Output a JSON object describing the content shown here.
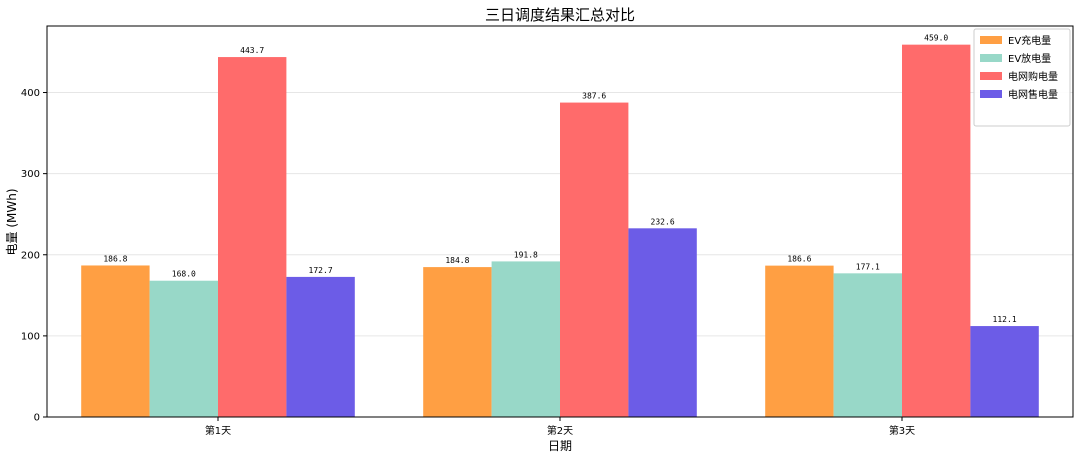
{
  "chart_data": {
    "type": "bar",
    "title": "三日调度结果汇总对比",
    "xlabel": "日期",
    "ylabel": "电量 (MWh)",
    "categories": [
      "第1天",
      "第2天",
      "第3天"
    ],
    "ylim": [
      0,
      482
    ],
    "yticks": [
      0,
      100,
      200,
      300,
      400
    ],
    "grid": "horizontal",
    "legend_position": "top-right",
    "series": [
      {
        "name": "EV充电量",
        "color": "#ff9f43",
        "values": [
          186.8,
          184.8,
          186.6
        ],
        "labels": [
          "186.8",
          "184.8",
          "186.6"
        ]
      },
      {
        "name": "EV放电量",
        "color": "#98d8c8",
        "values": [
          168.0,
          191.8,
          177.1
        ],
        "labels": [
          "168.0",
          "191.8",
          "177.1"
        ]
      },
      {
        "name": "电网购电量",
        "color": "#ff6b6b",
        "values": [
          443.7,
          387.6,
          459.0
        ],
        "labels": [
          "443.7",
          "387.6",
          "459.0"
        ]
      },
      {
        "name": "电网售电量",
        "color": "#6c5ce7",
        "values": [
          172.7,
          232.6,
          112.1
        ],
        "labels": [
          "172.7",
          "232.6",
          "112.1"
        ]
      }
    ]
  }
}
